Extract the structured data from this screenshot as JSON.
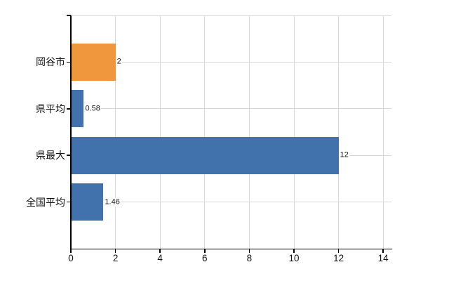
{
  "chart_data": {
    "type": "bar",
    "orientation": "horizontal",
    "title": "",
    "xlabel": "",
    "ylabel": "",
    "categories": [
      "岡谷市",
      "県平均",
      "県最大",
      "全国平均"
    ],
    "values": [
      2,
      0.58,
      12,
      1.46
    ],
    "value_labels": [
      "2",
      "0.58",
      "12",
      "1.46"
    ],
    "bar_colors": [
      "#f0963c",
      "#4172ac",
      "#4172ac",
      "#4172ac"
    ],
    "x_tick_labels": [
      "0",
      "2",
      "4",
      "6",
      "8",
      "10",
      "12",
      "14"
    ],
    "x_tick_values": [
      0,
      2,
      4,
      6,
      8,
      10,
      12,
      14
    ],
    "xlim": [
      0,
      14.4
    ],
    "grid": true,
    "legend_position": "none"
  },
  "colors": {
    "background": "#ffffff",
    "grid": "#d8d8d8",
    "axis": "#000000",
    "bar_orange": "#f0963c",
    "bar_blue": "#4172ac",
    "text": "#111111"
  }
}
